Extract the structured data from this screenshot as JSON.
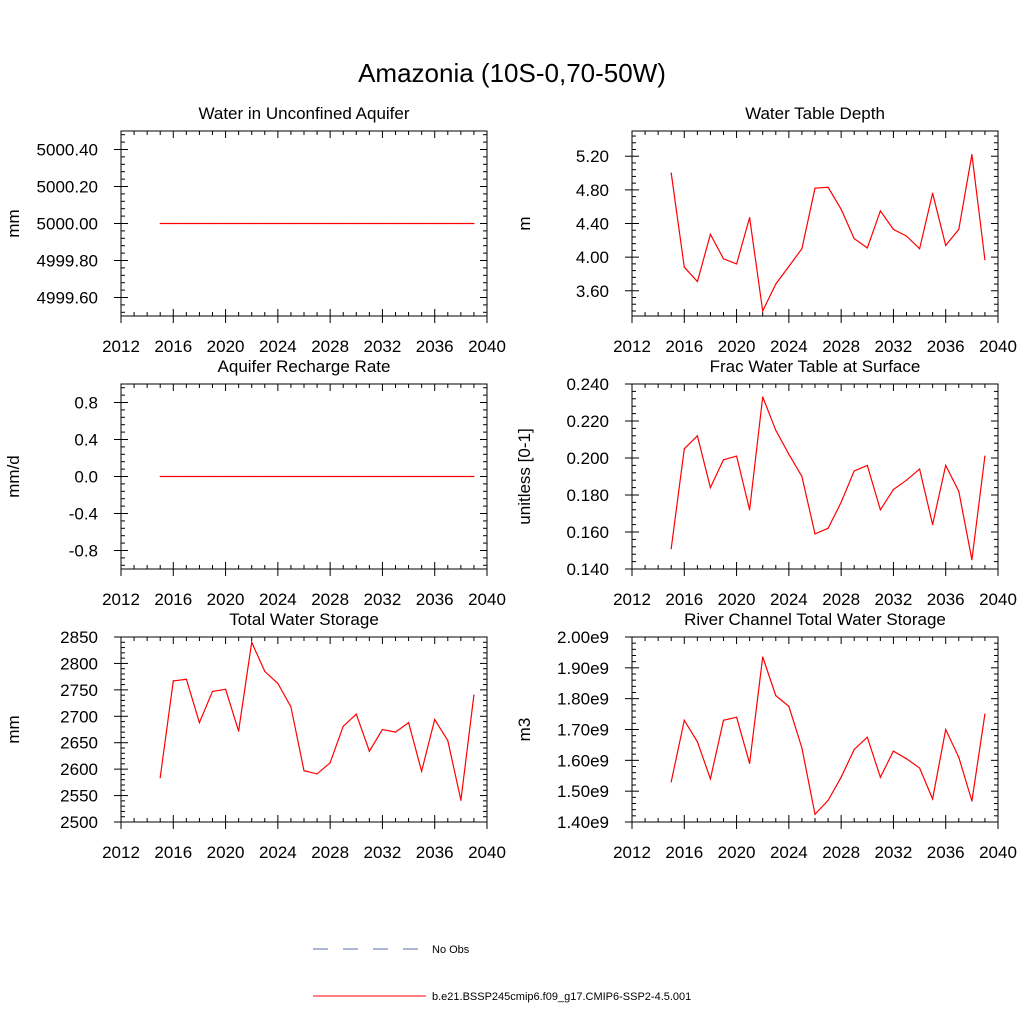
{
  "figure": {
    "title": "Amazonia (10S-0,70-50W)"
  },
  "legend": {
    "entries": [
      {
        "label": "No Obs",
        "color": "#5a6fb0",
        "style": "dashed"
      },
      {
        "label": "b.e21.BSSP245cmip6.f09_g17.CMIP6-SSP2-4.5.001",
        "color": "#ff0000",
        "style": "solid"
      }
    ]
  },
  "colors": {
    "series": "#ff0000",
    "axis": "#000000"
  },
  "chart_data": [
    {
      "type": "line",
      "title": "Water in Unconfined Aquifer",
      "ylabel": "mm",
      "xlim": [
        2012,
        2040
      ],
      "ylim": [
        4999.5,
        5000.5
      ],
      "xticks": [
        2012,
        2016,
        2020,
        2024,
        2028,
        2032,
        2036,
        2040
      ],
      "yticks": [
        4999.6,
        4999.8,
        5000.0,
        5000.2,
        5000.4
      ],
      "ytick_labels": [
        "4999.60",
        "4999.80",
        "5000.00",
        "5000.20",
        "5000.40"
      ],
      "series": [
        {
          "x": [
            2015,
            2016,
            2017,
            2018,
            2019,
            2020,
            2021,
            2022,
            2023,
            2024,
            2025,
            2026,
            2027,
            2028,
            2029,
            2030,
            2031,
            2032,
            2033,
            2034,
            2035,
            2036,
            2037,
            2038,
            2039
          ],
          "y": [
            5000,
            5000,
            5000,
            5000,
            5000,
            5000,
            5000,
            5000,
            5000,
            5000,
            5000,
            5000,
            5000,
            5000,
            5000,
            5000,
            5000,
            5000,
            5000,
            5000,
            5000,
            5000,
            5000,
            5000,
            5000
          ]
        }
      ]
    },
    {
      "type": "line",
      "title": "Water Table Depth",
      "ylabel": "m",
      "xlim": [
        2012,
        2040
      ],
      "ylim": [
        3.3,
        5.5
      ],
      "xticks": [
        2012,
        2016,
        2020,
        2024,
        2028,
        2032,
        2036,
        2040
      ],
      "yticks": [
        3.6,
        4.0,
        4.4,
        4.8,
        5.2
      ],
      "ytick_labels": [
        "3.60",
        "4.00",
        "4.40",
        "4.80",
        "5.20"
      ],
      "series": [
        {
          "x": [
            2015,
            2016,
            2017,
            2018,
            2019,
            2020,
            2021,
            2022,
            2023,
            2024,
            2025,
            2026,
            2027,
            2028,
            2029,
            2030,
            2031,
            2032,
            2033,
            2034,
            2035,
            2036,
            2037,
            2038,
            2039
          ],
          "y": [
            5.0,
            3.88,
            3.71,
            4.27,
            3.98,
            3.92,
            4.47,
            3.36,
            3.68,
            3.89,
            4.1,
            4.82,
            4.83,
            4.57,
            4.22,
            4.11,
            4.55,
            4.33,
            4.25,
            4.1,
            4.76,
            4.14,
            4.33,
            5.22,
            3.97
          ]
        }
      ]
    },
    {
      "type": "line",
      "title": "Aquifer Recharge Rate",
      "ylabel": "mm/d",
      "xlim": [
        2012,
        2040
      ],
      "ylim": [
        -1.0,
        1.0
      ],
      "xticks": [
        2012,
        2016,
        2020,
        2024,
        2028,
        2032,
        2036,
        2040
      ],
      "yticks": [
        -0.8,
        -0.4,
        0.0,
        0.4,
        0.8
      ],
      "ytick_labels": [
        "-0.8",
        "-0.4",
        "0.0",
        "0.4",
        "0.8"
      ],
      "series": [
        {
          "x": [
            2015,
            2016,
            2017,
            2018,
            2019,
            2020,
            2021,
            2022,
            2023,
            2024,
            2025,
            2026,
            2027,
            2028,
            2029,
            2030,
            2031,
            2032,
            2033,
            2034,
            2035,
            2036,
            2037,
            2038,
            2039
          ],
          "y": [
            0,
            0,
            0,
            0,
            0,
            0,
            0,
            0,
            0,
            0,
            0,
            0,
            0,
            0,
            0,
            0,
            0,
            0,
            0,
            0,
            0,
            0,
            0,
            0,
            0
          ]
        }
      ]
    },
    {
      "type": "line",
      "title": "Frac Water Table at Surface",
      "ylabel": "unitless [0-1]",
      "xlim": [
        2012,
        2040
      ],
      "ylim": [
        0.14,
        0.24
      ],
      "xticks": [
        2012,
        2016,
        2020,
        2024,
        2028,
        2032,
        2036,
        2040
      ],
      "yticks": [
        0.14,
        0.16,
        0.18,
        0.2,
        0.22,
        0.24
      ],
      "ytick_labels": [
        "0.140",
        "0.160",
        "0.180",
        "0.200",
        "0.220",
        "0.240"
      ],
      "series": [
        {
          "x": [
            2015,
            2016,
            2017,
            2018,
            2019,
            2020,
            2021,
            2022,
            2023,
            2024,
            2025,
            2026,
            2027,
            2028,
            2029,
            2030,
            2031,
            2032,
            2033,
            2034,
            2035,
            2036,
            2037,
            2038,
            2039
          ],
          "y": [
            0.151,
            0.205,
            0.212,
            0.184,
            0.199,
            0.201,
            0.172,
            0.233,
            0.215,
            0.202,
            0.19,
            0.159,
            0.162,
            0.176,
            0.193,
            0.196,
            0.172,
            0.183,
            0.188,
            0.194,
            0.164,
            0.196,
            0.182,
            0.145,
            0.201
          ]
        }
      ]
    },
    {
      "type": "line",
      "title": "Total Water Storage",
      "ylabel": "mm",
      "xlim": [
        2012,
        2040
      ],
      "ylim": [
        2500,
        2850
      ],
      "xticks": [
        2012,
        2016,
        2020,
        2024,
        2028,
        2032,
        2036,
        2040
      ],
      "yticks": [
        2500,
        2550,
        2600,
        2650,
        2700,
        2750,
        2800,
        2850
      ],
      "ytick_labels": [
        "2500",
        "2550",
        "2600",
        "2650",
        "2700",
        "2750",
        "2800",
        "2850"
      ],
      "series": [
        {
          "x": [
            2015,
            2016,
            2017,
            2018,
            2019,
            2020,
            2021,
            2022,
            2023,
            2024,
            2025,
            2026,
            2027,
            2028,
            2029,
            2030,
            2031,
            2032,
            2033,
            2034,
            2035,
            2036,
            2037,
            2038,
            2039
          ],
          "y": [
            2584,
            2767,
            2770,
            2688,
            2747,
            2751,
            2672,
            2840,
            2785,
            2762,
            2718,
            2597,
            2591,
            2612,
            2681,
            2704,
            2634,
            2675,
            2670,
            2688,
            2596,
            2694,
            2654,
            2541,
            2740
          ]
        }
      ]
    },
    {
      "type": "line",
      "title": "River Channel Total Water Storage",
      "ylabel": "m3",
      "xlim": [
        2012,
        2040
      ],
      "ylim": [
        1400000000.0,
        2000000000.0
      ],
      "xticks": [
        2012,
        2016,
        2020,
        2024,
        2028,
        2032,
        2036,
        2040
      ],
      "yticks": [
        1400000000.0,
        1500000000.0,
        1600000000.0,
        1700000000.0,
        1800000000.0,
        1900000000.0,
        2000000000.0
      ],
      "ytick_labels": [
        "1.40e9",
        "1.50e9",
        "1.60e9",
        "1.70e9",
        "1.80e9",
        "1.90e9",
        "2.00e9"
      ],
      "series": [
        {
          "x": [
            2015,
            2016,
            2017,
            2018,
            2019,
            2020,
            2021,
            2022,
            2023,
            2024,
            2025,
            2026,
            2027,
            2028,
            2029,
            2030,
            2031,
            2032,
            2033,
            2034,
            2035,
            2036,
            2037,
            2038,
            2039
          ],
          "y": [
            1530000000.0,
            1730000000.0,
            1660000000.0,
            1540000000.0,
            1730000000.0,
            1740000000.0,
            1590000000.0,
            1935000000.0,
            1810000000.0,
            1775000000.0,
            1640000000.0,
            1425000000.0,
            1470000000.0,
            1545000000.0,
            1635000000.0,
            1675000000.0,
            1545000000.0,
            1630000000.0,
            1605000000.0,
            1575000000.0,
            1475000000.0,
            1700000000.0,
            1610000000.0,
            1468000000.0,
            1750000000.0
          ]
        }
      ]
    }
  ]
}
